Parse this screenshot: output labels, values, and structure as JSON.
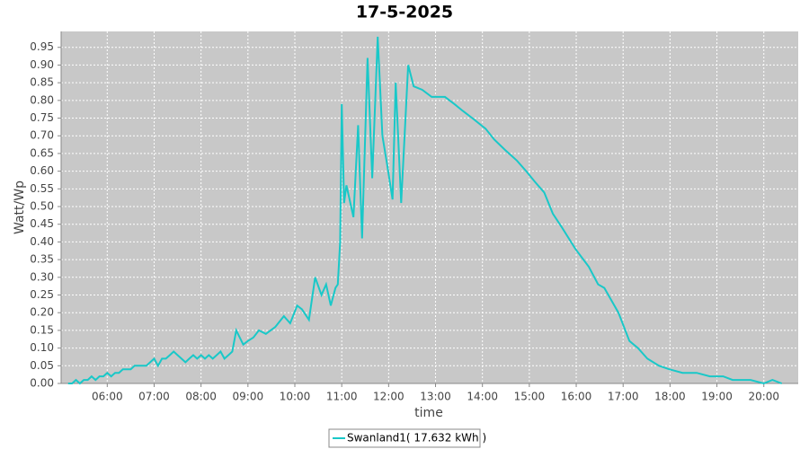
{
  "chart_data": {
    "type": "line",
    "title": "17-5-2025",
    "x_label": "time",
    "y_label": "Watt/Wp",
    "x": [
      "05:10",
      "05:15",
      "05:20",
      "05:25",
      "05:30",
      "05:35",
      "05:40",
      "05:45",
      "05:50",
      "05:55",
      "06:00",
      "06:05",
      "06:10",
      "06:15",
      "06:20",
      "06:25",
      "06:30",
      "06:35",
      "06:40",
      "06:45",
      "06:50",
      "06:55",
      "07:00",
      "07:05",
      "07:10",
      "07:15",
      "07:20",
      "07:25",
      "07:30",
      "07:35",
      "07:40",
      "07:45",
      "07:50",
      "07:55",
      "08:00",
      "08:05",
      "08:10",
      "08:15",
      "08:20",
      "08:25",
      "08:30",
      "08:35",
      "08:40",
      "08:45",
      "08:54",
      "09:00",
      "09:07",
      "09:14",
      "09:23",
      "09:35",
      "09:46",
      "09:54",
      "10:03",
      "10:09",
      "10:18",
      "10:26",
      "10:34",
      "10:40",
      "10:46",
      "10:52",
      "10:55",
      "10:58",
      "11:00",
      "11:03",
      "11:06",
      "11:10",
      "11:15",
      "11:21",
      "11:26",
      "11:33",
      "11:39",
      "11:46",
      "11:52",
      "11:58",
      "12:05",
      "12:09",
      "12:16",
      "12:25",
      "12:32",
      "12:43",
      "12:55",
      "13:12",
      "13:24",
      "13:35",
      "13:47",
      "14:04",
      "14:15",
      "14:29",
      "14:44",
      "14:56",
      "15:07",
      "15:19",
      "15:30",
      "15:42",
      "15:59",
      "16:16",
      "16:28",
      "16:36",
      "16:54",
      "17:08",
      "17:19",
      "17:31",
      "17:46",
      "17:59",
      "18:16",
      "18:34",
      "18:51",
      "19:08",
      "19:20",
      "19:43",
      "20:00",
      "20:11",
      "20:23"
    ],
    "series": [
      {
        "name": "Swanland1( 17.632 kWh )",
        "color": "#19c8c8",
        "values": [
          0.0,
          0.0,
          0.01,
          0.0,
          0.01,
          0.01,
          0.02,
          0.01,
          0.02,
          0.02,
          0.03,
          0.02,
          0.03,
          0.03,
          0.04,
          0.04,
          0.04,
          0.05,
          0.05,
          0.05,
          0.05,
          0.06,
          0.07,
          0.05,
          0.07,
          0.07,
          0.08,
          0.09,
          0.08,
          0.07,
          0.06,
          0.07,
          0.08,
          0.07,
          0.08,
          0.07,
          0.08,
          0.07,
          0.08,
          0.09,
          0.07,
          0.08,
          0.09,
          0.15,
          0.11,
          0.12,
          0.13,
          0.15,
          0.14,
          0.16,
          0.19,
          0.17,
          0.22,
          0.21,
          0.18,
          0.3,
          0.25,
          0.28,
          0.22,
          0.27,
          0.28,
          0.4,
          0.79,
          0.51,
          0.56,
          0.52,
          0.47,
          0.73,
          0.41,
          0.92,
          0.58,
          0.98,
          0.7,
          0.62,
          0.52,
          0.85,
          0.51,
          0.9,
          0.84,
          0.83,
          0.81,
          0.81,
          0.79,
          0.77,
          0.75,
          0.72,
          0.69,
          0.66,
          0.63,
          0.6,
          0.57,
          0.54,
          0.48,
          0.44,
          0.38,
          0.33,
          0.28,
          0.27,
          0.2,
          0.12,
          0.1,
          0.07,
          0.05,
          0.04,
          0.03,
          0.03,
          0.02,
          0.02,
          0.01,
          0.01,
          0.0,
          0.01,
          0.0
        ]
      }
    ],
    "xlim": [
      "05:01",
      "20:44"
    ],
    "xticks": [
      "06:00",
      "07:00",
      "08:00",
      "09:00",
      "10:00",
      "11:00",
      "12:00",
      "13:00",
      "14:00",
      "15:00",
      "16:00",
      "17:00",
      "18:00",
      "19:00",
      "20:00"
    ],
    "ylim": [
      0,
      0.995
    ],
    "yticks": [
      {
        "value": 0,
        "label": "0.00"
      },
      {
        "value": 0.05,
        "label": "0.05"
      },
      {
        "value": 0.1,
        "label": "0.10"
      },
      {
        "value": 0.15,
        "label": "0.15"
      },
      {
        "value": 0.2,
        "label": "0.20"
      },
      {
        "value": 0.25,
        "label": "0.25"
      },
      {
        "value": 0.3,
        "label": "0.30"
      },
      {
        "value": 0.35,
        "label": "0.35"
      },
      {
        "value": 0.4,
        "label": "0.40"
      },
      {
        "value": 0.45,
        "label": "0.45"
      },
      {
        "value": 0.5,
        "label": "0.50"
      },
      {
        "value": 0.55,
        "label": "0.55"
      },
      {
        "value": 0.6,
        "label": "0.60"
      },
      {
        "value": 0.65,
        "label": "0.65"
      },
      {
        "value": 0.7,
        "label": "0.70"
      },
      {
        "value": 0.75,
        "label": "0.75"
      },
      {
        "value": 0.8,
        "label": "0.80"
      },
      {
        "value": 0.85,
        "label": "0.85"
      },
      {
        "value": 0.9,
        "label": "0.90"
      },
      {
        "value": 0.95,
        "label": "0.95"
      }
    ],
    "grid": true
  }
}
